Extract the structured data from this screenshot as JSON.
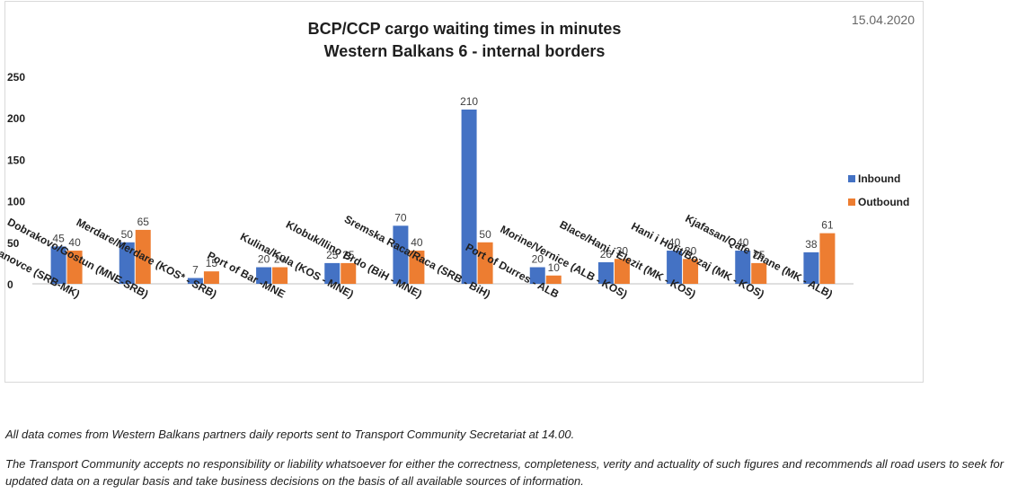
{
  "chart_data": {
    "type": "bar",
    "title_lines": [
      "BCP/CCP cargo waiting times in minutes",
      "Western Balkans 6 - internal borders"
    ],
    "date": "15.04.2020",
    "ylim": [
      0,
      250
    ],
    "yticks": [
      0,
      50,
      100,
      150,
      200,
      250
    ],
    "grid": false,
    "legend_position": "right",
    "categories": [
      "Presevo/ Tabanovce (SRB-MK)",
      "Dobrakovo/Gostun (MNE-SRB)",
      "Merdare/Merdare (KOS* - SRB)",
      "Port of Bar -MNE",
      "Kulina/Kula (KOS - MNE)",
      "Klobuk/Ilino Brdo (BiH - MNE)",
      "Sremska Raca/Raca (SRB - BiH)",
      "Port of Durres - ALB",
      "Morine/Vernice (ALB - KOS)",
      "Blace/Hani i Elezit (MK - KOS)",
      "Hani i Hotit/Bozaj (MK - KOS)",
      "Kjafasan/Qafe Thane (MK - ALB)"
    ],
    "series": [
      {
        "name": "Inbound",
        "color": "#4472c4",
        "values": [
          45,
          50,
          7,
          20,
          25,
          70,
          210,
          20,
          26,
          40,
          40,
          38
        ]
      },
      {
        "name": "Outbound",
        "color": "#ed7d31",
        "values": [
          40,
          65,
          15,
          20,
          25,
          40,
          50,
          10,
          30,
          30,
          25,
          61
        ]
      }
    ]
  },
  "notes": {
    "source": "All data comes from Western Balkans partners daily reports sent to Transport Community Secretariat at 14.00.",
    "disclaimer": "The Transport Community accepts no responsibility or liability whatsoever for either the correctness, completeness, verity and actuality of such figures and recommends all road users to seek for updated data on a regular basis and take business decisions on the basis of all available sources of information."
  }
}
